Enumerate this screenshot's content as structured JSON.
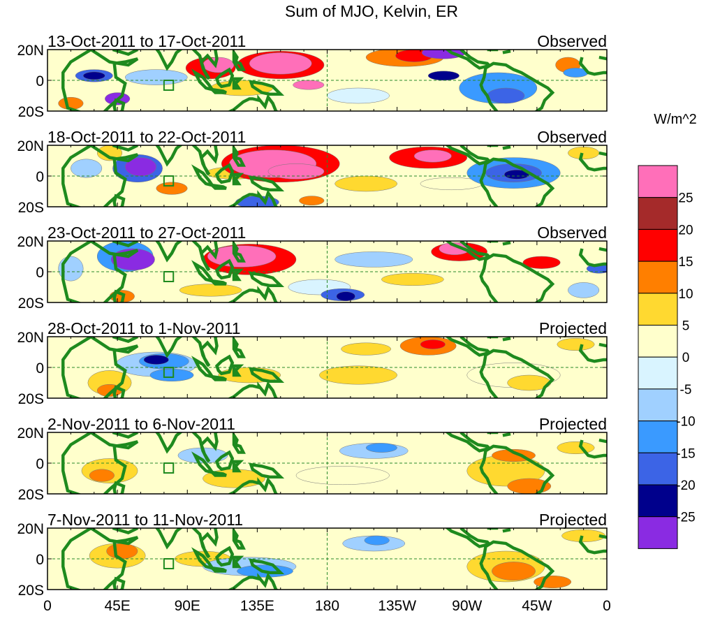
{
  "title": "Sum of MJO, Kelvin, ER",
  "units_label": "W/m^2",
  "panels": [
    {
      "date_range": "13-Oct-2011 to 17-Oct-2011",
      "status": "Observed"
    },
    {
      "date_range": "18-Oct-2011 to 22-Oct-2011",
      "status": "Observed"
    },
    {
      "date_range": "23-Oct-2011 to 27-Oct-2011",
      "status": "Observed"
    },
    {
      "date_range": "28-Oct-2011 to 1-Nov-2011",
      "status": "Projected"
    },
    {
      "date_range": "2-Nov-2011 to 6-Nov-2011",
      "status": "Projected"
    },
    {
      "date_range": "7-Nov-2011 to 11-Nov-2011",
      "status": "Projected"
    }
  ],
  "lat_labels": [
    "20N",
    "0",
    "20S"
  ],
  "lon_labels": [
    "0",
    "45E",
    "90E",
    "135E",
    "180",
    "135W",
    "90W",
    "45W",
    "0"
  ],
  "colorbar": {
    "colors": [
      "#ff6fb9",
      "#a52a2a",
      "#ff0000",
      "#ff7f00",
      "#ffd930",
      "#ffffcc",
      "#d9f4ff",
      "#a0d0ff",
      "#3a9aff",
      "#3c64e6",
      "#00008c",
      "#8a2be2"
    ],
    "labels": [
      "25",
      "20",
      "15",
      "10",
      "5",
      "0",
      "-5",
      "-10",
      "-15",
      "-20",
      "-25"
    ]
  },
  "colors": {
    "coast": "#1e8a1e",
    "dash": "#2a8a2a"
  },
  "blobs": [
    [
      [
        15,
        -15,
        8,
        4,
        "#ff7f00"
      ],
      [
        45,
        -12,
        8,
        4,
        "#8a2be2"
      ],
      [
        30,
        3,
        12,
        4,
        "#3c64e6"
      ],
      [
        30,
        3,
        7,
        2.5,
        "#00008c"
      ],
      [
        70,
        2,
        20,
        5,
        "#a0d0ff"
      ],
      [
        105,
        8,
        16,
        7,
        "#ff0000"
      ],
      [
        110,
        10,
        10,
        5,
        "#ff6fb9"
      ],
      [
        150,
        10,
        28,
        9,
        "#ff0000"
      ],
      [
        150,
        11,
        20,
        7,
        "#ff6fb9"
      ],
      [
        168,
        -3,
        10,
        3,
        "#ff6fb9"
      ],
      [
        125,
        -5,
        20,
        5,
        "#ffd930"
      ],
      [
        200,
        -10,
        20,
        5,
        "#d9f4ff"
      ],
      [
        230,
        15,
        25,
        6,
        "#ff7f00"
      ],
      [
        236,
        16,
        12,
        4,
        "#ff0000"
      ],
      [
        255,
        18,
        14,
        4,
        "#8a2be2"
      ],
      [
        255,
        3,
        10,
        3,
        "#00008c"
      ],
      [
        290,
        -5,
        25,
        10,
        "#3a9aff"
      ],
      [
        295,
        -10,
        12,
        5,
        "#3c64e6"
      ],
      [
        335,
        10,
        8,
        5,
        "#ff7f00"
      ],
      [
        340,
        5,
        8,
        3,
        "#3a9aff"
      ]
    ],
    [
      [
        25,
        5,
        10,
        6,
        "#a0d0ff"
      ],
      [
        58,
        5,
        16,
        9,
        "#3c64e6"
      ],
      [
        60,
        6,
        10,
        6,
        "#8a2be2"
      ],
      [
        40,
        15,
        8,
        5,
        "#ffd930"
      ],
      [
        80,
        -8,
        10,
        4,
        "#ff7f00"
      ],
      [
        120,
        2,
        18,
        4,
        "#ffd930"
      ],
      [
        150,
        8,
        38,
        12,
        "#ff0000"
      ],
      [
        145,
        8,
        28,
        9,
        "#ff6fb9"
      ],
      [
        160,
        3,
        18,
        5,
        "#ff6fb9"
      ],
      [
        135,
        -17,
        14,
        4,
        "#3c64e6"
      ],
      [
        170,
        -16,
        8,
        3,
        "#ff7f00"
      ],
      [
        205,
        -5,
        20,
        5,
        "#ffd930"
      ],
      [
        245,
        12,
        25,
        7,
        "#ff0000"
      ],
      [
        248,
        13,
        12,
        4,
        "#ff6fb9"
      ],
      [
        260,
        -5,
        20,
        4,
        "#ffffcc"
      ],
      [
        300,
        2,
        30,
        10,
        "#3a9aff"
      ],
      [
        300,
        2,
        18,
        6,
        "#3c64e6"
      ],
      [
        302,
        1,
        8,
        3,
        "#00008c"
      ],
      [
        345,
        15,
        10,
        4,
        "#ffd930"
      ]
    ],
    [
      [
        15,
        2,
        8,
        8,
        "#a0d0ff"
      ],
      [
        50,
        10,
        18,
        10,
        "#3a9aff"
      ],
      [
        55,
        8,
        14,
        7,
        "#8a2be2"
      ],
      [
        48,
        -16,
        8,
        4,
        "#ff7f00"
      ],
      [
        130,
        8,
        30,
        10,
        "#ff0000"
      ],
      [
        125,
        10,
        22,
        7,
        "#ff6fb9"
      ],
      [
        105,
        -12,
        20,
        4,
        "#ffd930"
      ],
      [
        175,
        -10,
        20,
        5,
        "#d9f4ff"
      ],
      [
        190,
        -15,
        14,
        4,
        "#3c64e6"
      ],
      [
        192,
        -16,
        6,
        3,
        "#00008c"
      ],
      [
        210,
        8,
        25,
        5,
        "#a0d0ff"
      ],
      [
        265,
        13,
        18,
        6,
        "#ff0000"
      ],
      [
        262,
        15,
        10,
        4,
        "#ff6fb9"
      ],
      [
        235,
        -5,
        20,
        4,
        "#ffd930"
      ],
      [
        318,
        6,
        12,
        4,
        "#ff0000"
      ],
      [
        355,
        2,
        8,
        3,
        "#3c64e6"
      ],
      [
        345,
        -12,
        10,
        5,
        "#a0d0ff"
      ]
    ],
    [
      [
        40,
        -10,
        14,
        8,
        "#ffd930"
      ],
      [
        40,
        -15,
        8,
        4,
        "#ff7f00"
      ],
      [
        70,
        2,
        26,
        8,
        "#a0d0ff"
      ],
      [
        75,
        4,
        16,
        5,
        "#3a9aff"
      ],
      [
        70,
        5,
        8,
        3,
        "#00008c"
      ],
      [
        80,
        -5,
        14,
        4,
        "#3a9aff"
      ],
      [
        130,
        -5,
        20,
        5,
        "#ffd930"
      ],
      [
        200,
        -5,
        25,
        6,
        "#ffd930"
      ],
      [
        245,
        14,
        18,
        6,
        "#ff7f00"
      ],
      [
        248,
        15,
        8,
        3,
        "#ff0000"
      ],
      [
        205,
        12,
        16,
        4,
        "#ffd930"
      ],
      [
        300,
        -5,
        30,
        8,
        "#ffffcc"
      ],
      [
        310,
        -10,
        14,
        5,
        "#ffd930"
      ],
      [
        340,
        15,
        12,
        4,
        "#ffd930"
      ]
    ],
    [
      [
        40,
        -5,
        18,
        8,
        "#ffd930"
      ],
      [
        35,
        -8,
        8,
        4,
        "#ff7f00"
      ],
      [
        100,
        5,
        16,
        5,
        "#a0d0ff"
      ],
      [
        120,
        -10,
        20,
        6,
        "#ffd930"
      ],
      [
        190,
        -8,
        30,
        6,
        "#ffffcc"
      ],
      [
        210,
        8,
        22,
        5,
        "#a0d0ff"
      ],
      [
        215,
        10,
        10,
        3,
        "#3a9aff"
      ],
      [
        295,
        -5,
        25,
        10,
        "#ffd930"
      ],
      [
        310,
        -15,
        14,
        5,
        "#ff7f00"
      ],
      [
        300,
        5,
        14,
        4,
        "#ff7f00"
      ],
      [
        340,
        10,
        12,
        4,
        "#ffd930"
      ]
    ],
    [
      [
        45,
        2,
        18,
        8,
        "#ffd930"
      ],
      [
        48,
        5,
        10,
        5,
        "#ff7f00"
      ],
      [
        100,
        0,
        18,
        5,
        "#ffd930"
      ],
      [
        130,
        -5,
        30,
        6,
        "#a0d0ff"
      ],
      [
        140,
        -8,
        18,
        4,
        "#3a9aff"
      ],
      [
        210,
        10,
        20,
        5,
        "#a0d0ff"
      ],
      [
        212,
        12,
        8,
        3,
        "#3a9aff"
      ],
      [
        295,
        -5,
        25,
        10,
        "#ffd930"
      ],
      [
        300,
        -8,
        14,
        6,
        "#ff7f00"
      ],
      [
        325,
        -15,
        12,
        4,
        "#ff7f00"
      ],
      [
        345,
        15,
        14,
        4,
        "#ffd930"
      ]
    ]
  ]
}
